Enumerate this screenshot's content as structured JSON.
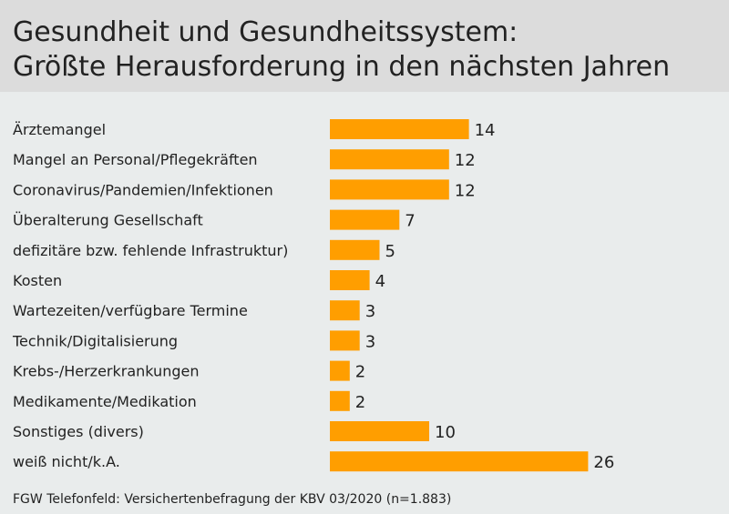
{
  "header": {
    "title_line1": "Gesundheit und Gesundheitssystem:",
    "title_line2": "Größte Herausforderung in den nächsten Jahren"
  },
  "colors": {
    "bar": "#ff9e00",
    "header_bg": "#dcdcdc",
    "page_bg": "#e9ecec"
  },
  "chart_data": {
    "type": "bar",
    "orientation": "horizontal",
    "title": "Gesundheit und Gesundheitssystem: Größte Herausforderung in den nächsten Jahren",
    "categories": [
      "Ärztemangel",
      "Mangel an Personal/Pflegekräften",
      "Coronavirus/Pandemien/Infektionen",
      "Überalterung Gesellschaft",
      "defizitäre bzw. fehlende Infrastruktur)",
      "Kosten",
      "Wartezeiten/verfügbare Termine",
      "Technik/Digitalisierung",
      "Krebs-/Herzerkrankungen",
      "Medikamente/Medikation",
      "Sonstiges (divers)",
      "weiß nicht/k.A."
    ],
    "values": [
      14,
      12,
      12,
      7,
      5,
      4,
      3,
      3,
      2,
      2,
      10,
      26
    ],
    "data_labels": true,
    "grid": false
  },
  "footer": {
    "source": "FGW Telefonfeld: Versichertenbefragung der KBV 03/2020 (n=1.883)"
  }
}
